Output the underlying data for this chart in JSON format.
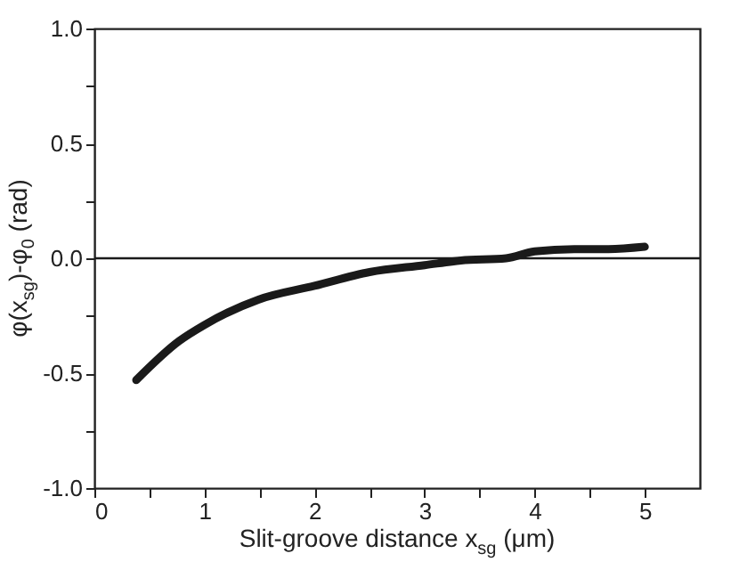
{
  "chart_data": {
    "type": "line",
    "xlabel": "Slit-groove distance x$_{sg}$ (μm)",
    "ylabel": "φ(x$_{sg}$)-φ$_{0}$ (rad)",
    "x": [
      0.38,
      0.77,
      1.0,
      1.49,
      2.0,
      2.5,
      3.0,
      3.33,
      3.74,
      4.0,
      4.36,
      4.67,
      5.0
    ],
    "series": [
      {
        "color": "#1a1a1a",
        "values": [
          -0.53,
          -0.36,
          -0.29,
          -0.18,
          -0.12,
          -0.06,
          -0.03,
          -0.01,
          0.0,
          0.03,
          0.04,
          0.04,
          0.05
        ]
      }
    ],
    "xlim": [
      0,
      5.5
    ],
    "xticks": [
      0,
      {
        "value": 0.5,
        "label": null
      },
      1,
      {
        "value": 1.5,
        "label": null
      },
      2,
      {
        "value": 2.5,
        "label": null
      },
      3,
      {
        "value": 3.5,
        "label": null
      },
      4,
      {
        "value": 4.5,
        "label": null
      },
      5
    ],
    "ylim": [
      -1,
      1
    ],
    "yticks": [
      {
        "value": -1,
        "label": "-1.0"
      },
      {
        "value": -0.75,
        "label": null
      },
      {
        "value": -0.5,
        "label": "-0.5"
      },
      {
        "value": -0.25,
        "label": null
      },
      {
        "value": 0,
        "label": "0.0"
      },
      {
        "value": 0.25,
        "label": null
      },
      {
        "value": 0.5,
        "label": "0.5"
      },
      {
        "value": 0.75,
        "label": null
      },
      {
        "value": 1,
        "label": "1.0"
      }
    ],
    "ref_lines": [
      {
        "axis": "y",
        "value": 0,
        "color": "#1a1a1a"
      }
    ],
    "grid": false,
    "marker": "none",
    "line_style": "solid"
  }
}
